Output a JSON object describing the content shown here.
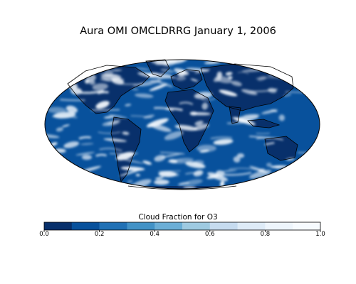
{
  "title": "Aura OMI OMCLDRRG January 1, 2006",
  "colorbar": {
    "label": "Cloud Fraction for O3",
    "ticks": [
      "0.0",
      "0.2",
      "0.4",
      "0.6",
      "0.8",
      "1.0"
    ],
    "range": [
      0.0,
      1.0
    ],
    "bins": 10,
    "colors": [
      "#08306b",
      "#08519c",
      "#2171b5",
      "#4292c6",
      "#6baed6",
      "#9ecae1",
      "#c6dbef",
      "#deebf7",
      "#eef5fc",
      "#f7fbff"
    ]
  },
  "map": {
    "projection": "Mollweide",
    "ocean_color": "#08519c",
    "land_clear_color": "#08306b",
    "cloud_color": "#f7fbff",
    "coastline_color": "#000000"
  }
}
